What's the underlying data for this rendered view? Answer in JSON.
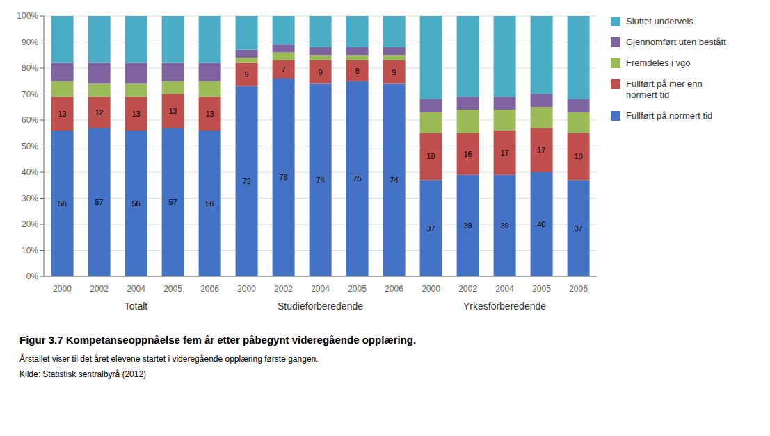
{
  "chart_data": {
    "type": "bar",
    "stacked": true,
    "title": "Figur 3.7  Kompetanseoppnåelse fem år etter påbegynt videregående opplæring.",
    "subtitle": "Årstallet viser til det året elevene startet i videregående opplæring første gangen.",
    "source": "Kilde: Statistisk sentralbyrå (2012)",
    "categories": [
      "2000",
      "2002",
      "2004",
      "2005",
      "2006",
      "2000",
      "2002",
      "2004",
      "2005",
      "2006",
      "2000",
      "2002",
      "2004",
      "2005",
      "2006"
    ],
    "annotations": [
      "Totalt",
      "Studieforberedende",
      "Yrkesforberedende"
    ],
    "series": [
      {
        "name": "Fullført på normert tid",
        "color": "#4472C4",
        "data_labels": true,
        "values": [
          56,
          57,
          56,
          57,
          56,
          73,
          76,
          74,
          75,
          74,
          37,
          39,
          39,
          40,
          37
        ]
      },
      {
        "name": "Fullført på mer enn\nnormert tid",
        "color": "#C0504D",
        "data_labels": true,
        "values": [
          13,
          12,
          13,
          13,
          13,
          9,
          7,
          9,
          8,
          9,
          18,
          16,
          17,
          17,
          18
        ]
      },
      {
        "name": "Fremdeles i vgo",
        "color": "#9BBB59",
        "values": [
          6,
          5,
          5,
          5,
          6,
          2,
          3,
          2,
          2,
          2,
          8,
          9,
          8,
          8,
          8
        ]
      },
      {
        "name": "Gjennomført uten bestått",
        "color": "#8064A2",
        "values": [
          7,
          8,
          8,
          7,
          7,
          3,
          3,
          3,
          3,
          3,
          5,
          5,
          5,
          5,
          5
        ]
      },
      {
        "name": "Sluttet underveis",
        "color": "#4BACC6",
        "values": [
          18,
          18,
          18,
          18,
          18,
          13,
          11,
          12,
          12,
          12,
          32,
          31,
          31,
          30,
          32
        ]
      }
    ],
    "ylim": [
      0,
      100
    ],
    "yticks": [
      {
        "value": 0,
        "label": "0%"
      },
      {
        "value": 10,
        "label": "10%"
      },
      {
        "value": 20,
        "label": "20%"
      },
      {
        "value": 30,
        "label": "30%"
      },
      {
        "value": 40,
        "label": "40%"
      },
      {
        "value": 50,
        "label": "50%"
      },
      {
        "value": 60,
        "label": "60%"
      },
      {
        "value": 70,
        "label": "70%"
      },
      {
        "value": 80,
        "label": "80%"
      },
      {
        "value": 90,
        "label": "90%"
      },
      {
        "value": 100,
        "label": "100%"
      }
    ],
    "grid": true,
    "legend": "right"
  }
}
